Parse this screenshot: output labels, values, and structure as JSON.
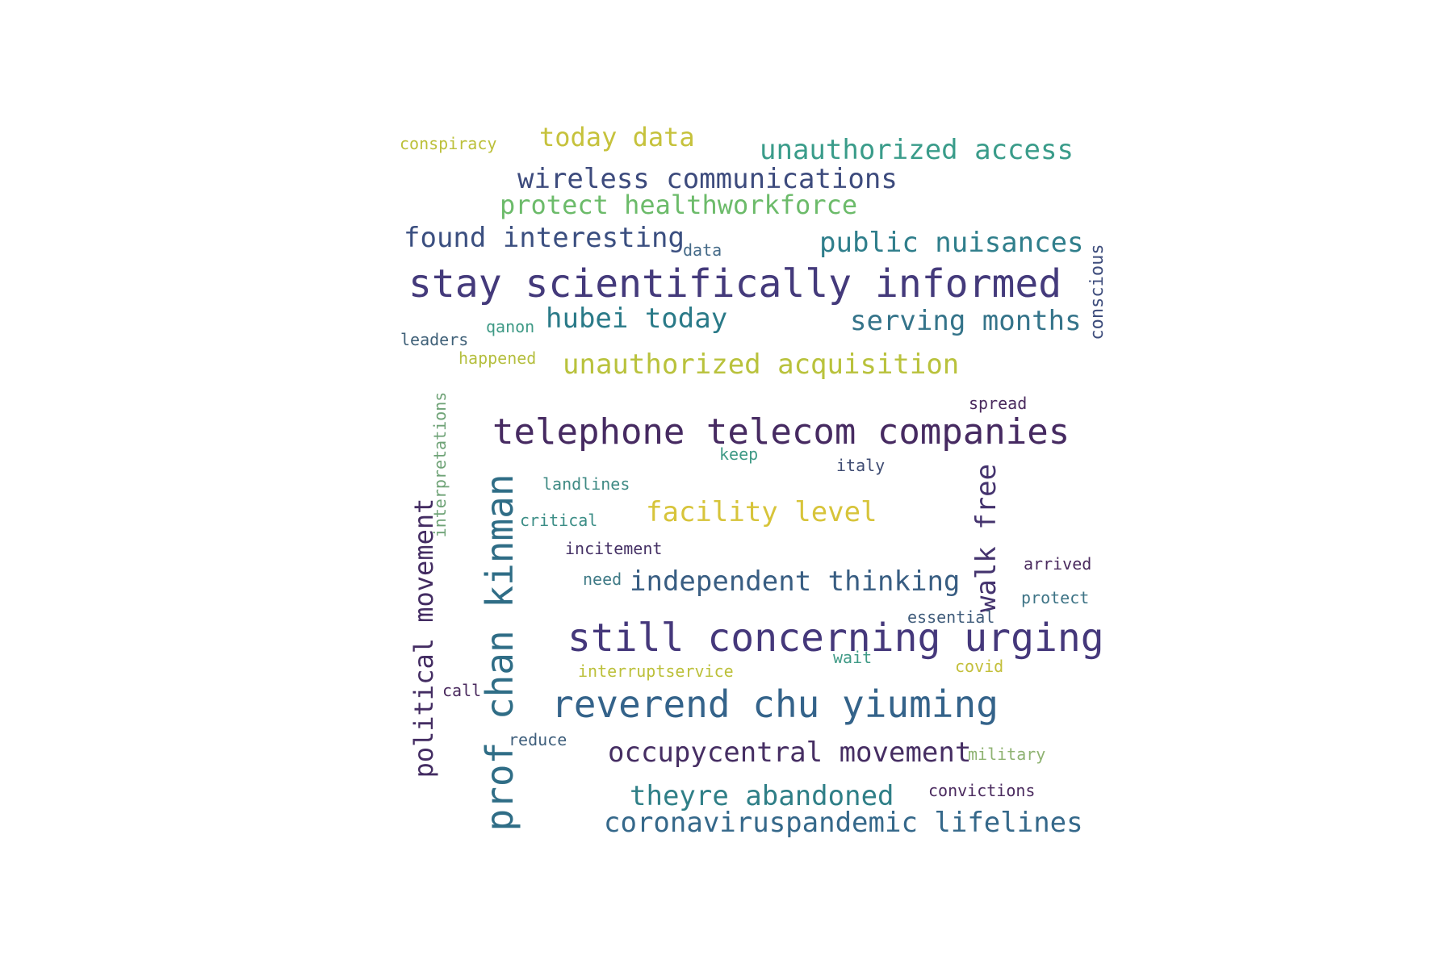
{
  "wordcloud": {
    "words": [
      {
        "text": "conspiracy",
        "color": "#bcc03a",
        "vertical": false
      },
      {
        "text": "today data",
        "color": "#c6c23c",
        "vertical": false
      },
      {
        "text": "unauthorized access",
        "color": "#3a9c8a",
        "vertical": false
      },
      {
        "text": "wireless communications",
        "color": "#3d4b7d",
        "vertical": false
      },
      {
        "text": "protect healthworkforce",
        "color": "#6cbb6a",
        "vertical": false
      },
      {
        "text": "found interesting",
        "color": "#3b4f80",
        "vertical": false
      },
      {
        "text": "data",
        "color": "#456a88",
        "vertical": false
      },
      {
        "text": "public nuisances",
        "color": "#2f7e8b",
        "vertical": false
      },
      {
        "text": "stay scientifically informed",
        "color": "#443a7b",
        "vertical": false
      },
      {
        "text": "conscious",
        "color": "#3e4d7c",
        "vertical": true
      },
      {
        "text": "hubei today",
        "color": "#2a7a88",
        "vertical": false
      },
      {
        "text": "serving months",
        "color": "#35748a",
        "vertical": false
      },
      {
        "text": "leaders",
        "color": "#3f6078",
        "vertical": false
      },
      {
        "text": "qanon",
        "color": "#3f9a86",
        "vertical": false
      },
      {
        "text": "happened",
        "color": "#b5bf3f",
        "vertical": false
      },
      {
        "text": "unauthorized acquisition",
        "color": "#b9c23c",
        "vertical": false
      },
      {
        "text": "spread",
        "color": "#4a2a5e",
        "vertical": false
      },
      {
        "text": "interpretations",
        "color": "#6fa377",
        "vertical": true
      },
      {
        "text": "telephone telecom companies",
        "color": "#462a61",
        "vertical": false
      },
      {
        "text": "keep",
        "color": "#3f9a86",
        "vertical": false
      },
      {
        "text": "italy",
        "color": "#3e4b72",
        "vertical": false
      },
      {
        "text": "landlines",
        "color": "#3f8a84",
        "vertical": false
      },
      {
        "text": "prof chan kinman",
        "color": "#2f6d86",
        "vertical": true
      },
      {
        "text": "walk free",
        "color": "#44336e",
        "vertical": true
      },
      {
        "text": "critical",
        "color": "#3b8d86",
        "vertical": false
      },
      {
        "text": "facility level",
        "color": "#d7c43a",
        "vertical": false
      },
      {
        "text": "political movement",
        "color": "#432c62",
        "vertical": true
      },
      {
        "text": "incitement",
        "color": "#453165",
        "vertical": false
      },
      {
        "text": "arrived",
        "color": "#4a2a5e",
        "vertical": false
      },
      {
        "text": "need",
        "color": "#3f7a86",
        "vertical": false
      },
      {
        "text": "independent thinking",
        "color": "#385d82",
        "vertical": false
      },
      {
        "text": "protect",
        "color": "#3e7486",
        "vertical": false
      },
      {
        "text": "essential",
        "color": "#3f5b7a",
        "vertical": false
      },
      {
        "text": "still concerning urging",
        "color": "#45387b",
        "vertical": false
      },
      {
        "text": "wait",
        "color": "#3f9a86",
        "vertical": false
      },
      {
        "text": "covid",
        "color": "#c3bf3a",
        "vertical": false
      },
      {
        "text": "interruptservice",
        "color": "#bcc03a",
        "vertical": false
      },
      {
        "text": "call",
        "color": "#4a2a5e",
        "vertical": false
      },
      {
        "text": "reverend chu yiuming",
        "color": "#34638a",
        "vertical": false
      },
      {
        "text": "reduce",
        "color": "#3f5f7c",
        "vertical": false
      },
      {
        "text": "occupycentral movement",
        "color": "#462e63",
        "vertical": false
      },
      {
        "text": "military",
        "color": "#8fb372",
        "vertical": false
      },
      {
        "text": "convictions",
        "color": "#4a2a5e",
        "vertical": false
      },
      {
        "text": "theyre abandoned",
        "color": "#2f7f87",
        "vertical": false
      },
      {
        "text": "coronaviruspandemic lifelines",
        "color": "#35688a",
        "vertical": false
      }
    ]
  }
}
